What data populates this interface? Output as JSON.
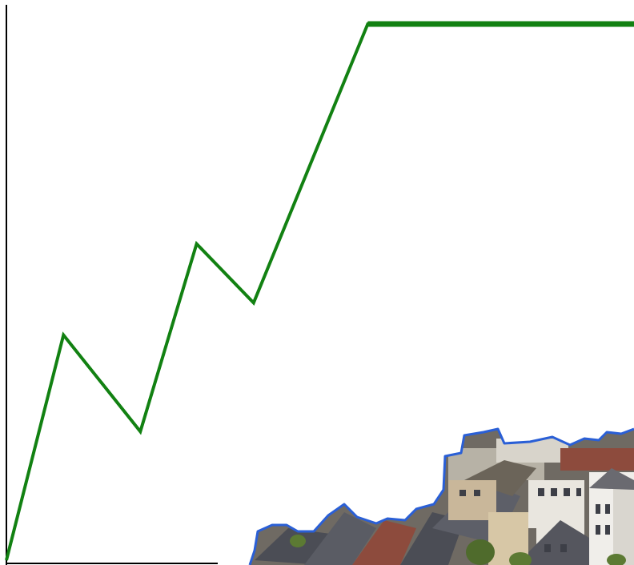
{
  "chart_data": {
    "type": "line",
    "title": "",
    "xlabel": "",
    "ylabel": "",
    "grid": false,
    "legend": "none",
    "series": [
      {
        "color": "#128112",
        "points": [
          {
            "x": 0,
            "y": 0
          },
          {
            "x": 72,
            "y": 42
          },
          {
            "x": 169,
            "y": 24
          },
          {
            "x": 240,
            "y": 59
          },
          {
            "x": 312,
            "y": 48
          },
          {
            "x": 456,
            "y": 100
          },
          {
            "x": 792,
            "y": 100
          }
        ]
      }
    ],
    "xlim": [
      0,
      792
    ],
    "ylim": [
      0,
      100
    ]
  },
  "colors": {
    "line": "#128112",
    "axis": "#000000",
    "skyline_outline": "#2a5fd6",
    "roof_dark": "#4b4d55",
    "roof_red": "#8d4b3d",
    "wall_light": "#e9e6df",
    "wall_beige": "#c9b79a",
    "tree_green": "#4f6b2c"
  },
  "decoration": {
    "name": "city-rooftops-photo-cutout"
  }
}
